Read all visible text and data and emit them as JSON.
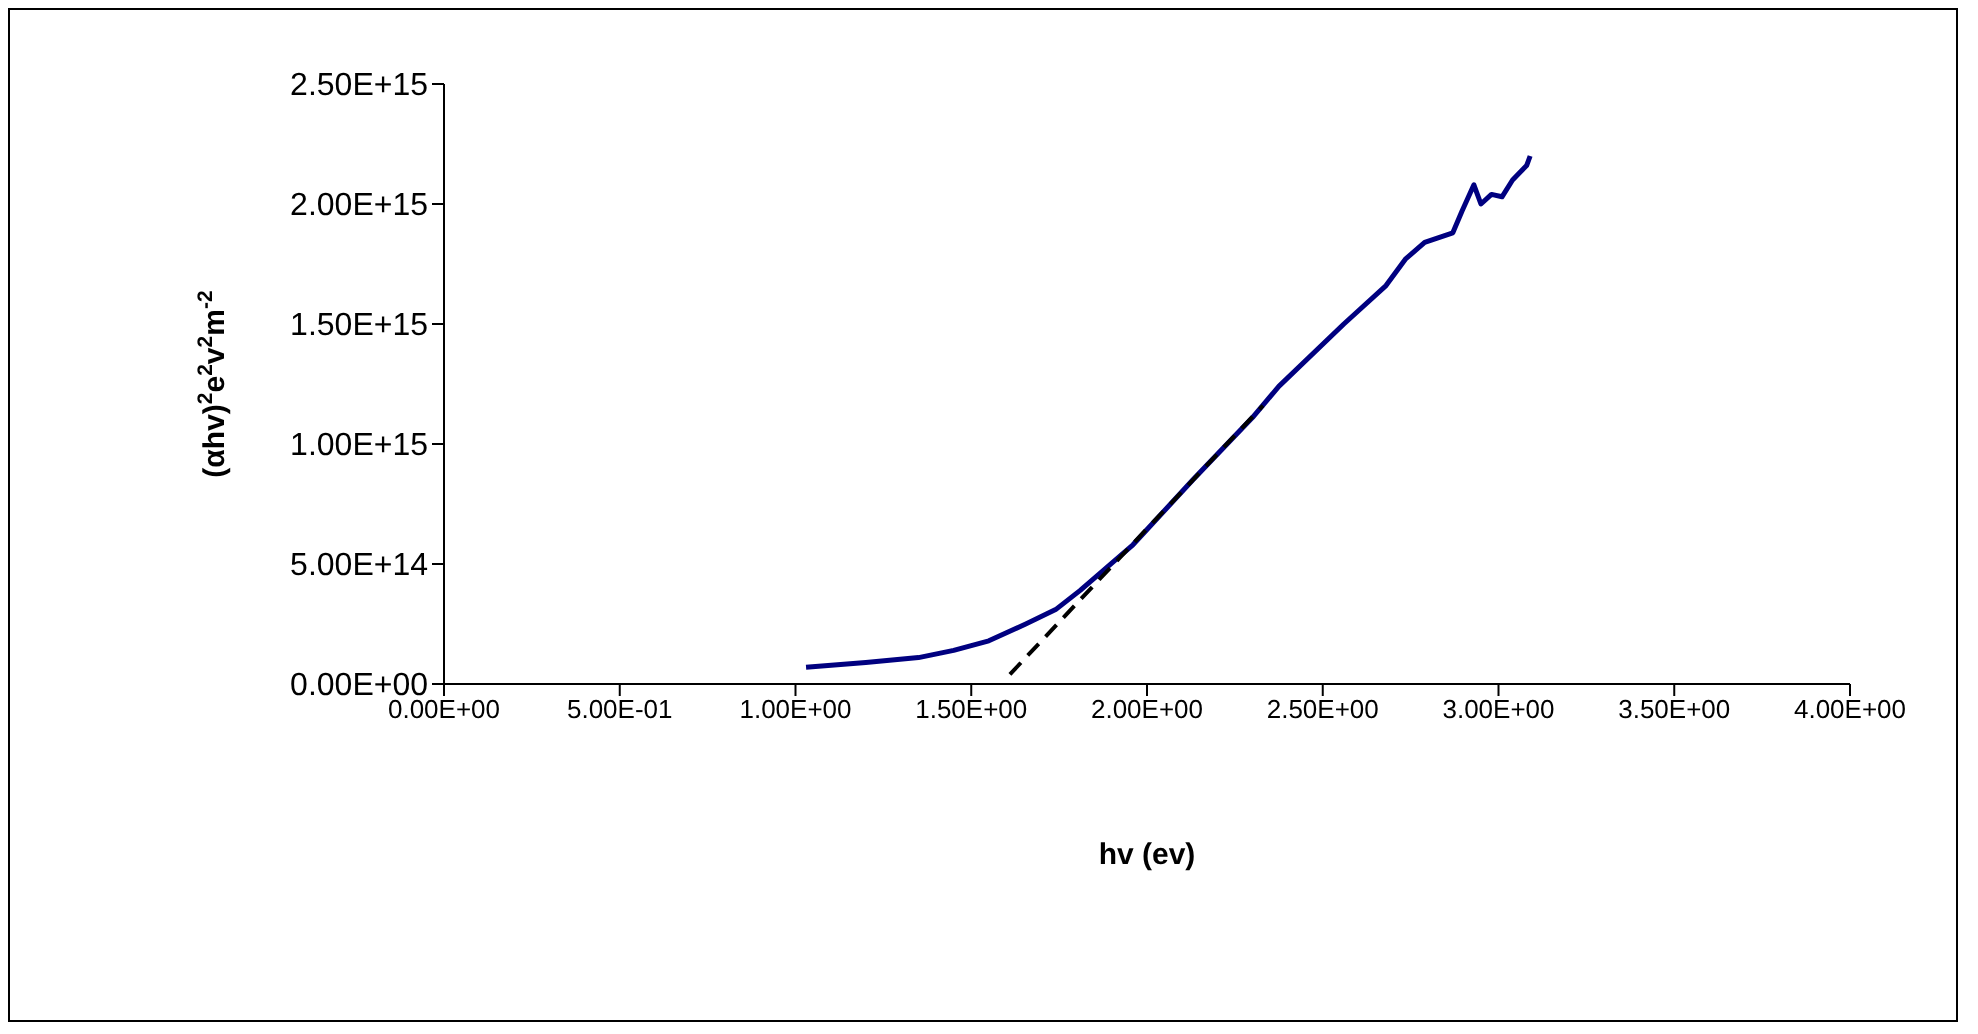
{
  "chart_data": {
    "type": "line",
    "xlabel": "hv (ev)",
    "ylabel": "(αhv)$^{2}$e$^{2}$v$^{2}$m$^{-2}$",
    "xlim": [
      0,
      4
    ],
    "xticks": [
      {
        "value": 0,
        "label": "0.00E+00"
      },
      {
        "value": 0.5,
        "label": "5.00E-01"
      },
      {
        "value": 1,
        "label": "1.00E+00"
      },
      {
        "value": 1.5,
        "label": "1.50E+00"
      },
      {
        "value": 2,
        "label": "2.00E+00"
      },
      {
        "value": 2.5,
        "label": "2.50E+00"
      },
      {
        "value": 3,
        "label": "3.00E+00"
      },
      {
        "value": 3.5,
        "label": "3.50E+00"
      },
      {
        "value": 4,
        "label": "4.00E+00"
      }
    ],
    "ylim": [
      0,
      2500000000000000.0
    ],
    "yticks": [
      {
        "value": 0,
        "label": "0.00E+00"
      },
      {
        "value": 500000000000000.0,
        "label": "5.00E+14"
      },
      {
        "value": 1000000000000000.0,
        "label": "1.00E+15"
      },
      {
        "value": 1500000000000000.0,
        "label": "1.50E+15"
      },
      {
        "value": 2000000000000000.0,
        "label": "2.00E+15"
      },
      {
        "value": 2500000000000000.0,
        "label": "2.50E+15"
      }
    ],
    "series": [
      {
        "color": "#000080",
        "x": [
          1.03,
          1.2,
          1.35,
          1.45,
          1.55,
          1.655,
          1.74,
          1.81,
          1.96,
          2.13,
          2.3,
          2.375,
          2.56,
          2.68,
          2.735,
          2.79,
          2.87,
          2.896,
          2.93,
          2.95,
          2.98,
          3.01,
          3.04,
          3.08,
          3.09
        ],
        "values": [
          70000000000000.0,
          90000000000000.0,
          110000000000000.0,
          140000000000000.0,
          180000000000000.0,
          250000000000000.0,
          310000000000000.0,
          390000000000000.0,
          580000000000000.0,
          850000000000000.0,
          1110000000000000.0,
          1240000000000000.0,
          1500000000000000.0,
          1660000000000000.0,
          1770000000000000.0,
          1840000000000000.0,
          1880000000000000.0,
          1970000000000000.0,
          2080000000000000.0,
          2000000000000000.0,
          2040000000000000.0,
          2030000000000000.0,
          2100000000000000.0,
          2160000000000000.0,
          2200000000000000.0
        ]
      },
      {
        "type": "line",
        "color": "#000000",
        "line_style": "dashed",
        "x": [
          1.61,
          2.33
        ],
        "values": [
          40000000000000.0,
          1160000000000000.0
        ]
      }
    ]
  }
}
